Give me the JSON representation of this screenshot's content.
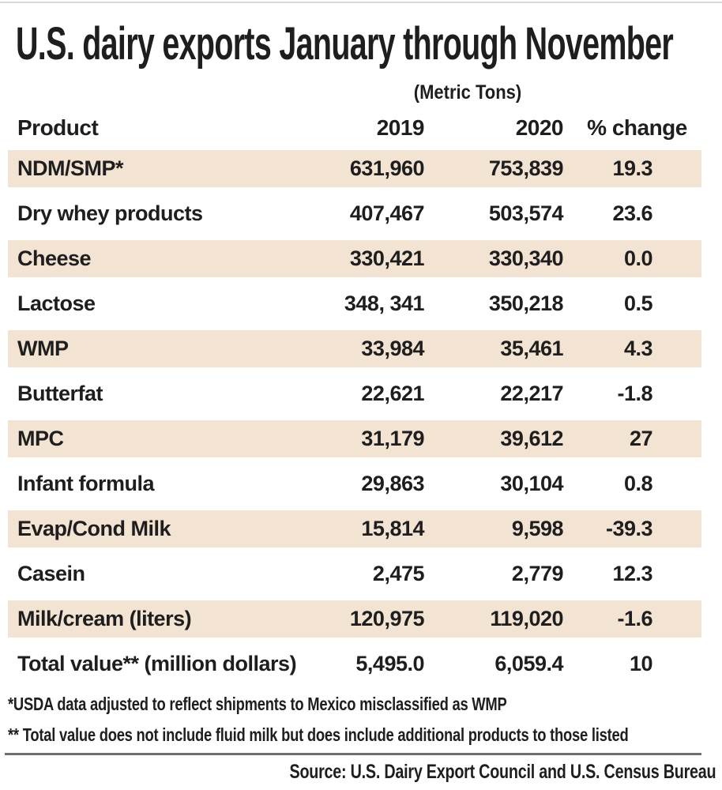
{
  "title": "U.S. dairy exports January through November",
  "unit_label": "(Metric Tons)",
  "table": {
    "header": {
      "product": "Product",
      "y2019": "2019",
      "y2020": "2020",
      "pct": "% change"
    },
    "rows": [
      {
        "product": "NDM/SMP*",
        "y2019": "631,960",
        "y2020": "753,839",
        "pct": "19.3"
      },
      {
        "product": "Dry whey products",
        "y2019": "407,467",
        "y2020": "503,574",
        "pct": "23.6"
      },
      {
        "product": "Cheese",
        "y2019": "330,421",
        "y2020": "330,340",
        "pct": "0.0"
      },
      {
        "product": "Lactose",
        "y2019": "348, 341",
        "y2020": "350,218",
        "pct": "0.5"
      },
      {
        "product": "WMP",
        "y2019": "33,984",
        "y2020": "35,461",
        "pct": "4.3"
      },
      {
        "product": "Butterfat",
        "y2019": "22,621",
        "y2020": "22,217",
        "pct": "-1.8"
      },
      {
        "product": "MPC",
        "y2019": "31,179",
        "y2020": "39,612",
        "pct": "27"
      },
      {
        "product": "Infant formula",
        "y2019": "29,863",
        "y2020": "30,104",
        "pct": "0.8"
      },
      {
        "product": "Evap/Cond Milk",
        "y2019": "15,814",
        "y2020": "9,598",
        "pct": "-39.3"
      },
      {
        "product": "Casein",
        "y2019": "2,475",
        "y2020": "2,779",
        "pct": "12.3"
      },
      {
        "product": "Milk/cream (liters)",
        "y2019": "120,975",
        "y2020": "119,020",
        "pct": "-1.6"
      },
      {
        "product": "Total value** (million dollars)",
        "y2019": "5,495.0",
        "y2020": "6,059.4",
        "pct": "10"
      }
    ]
  },
  "footnotes": {
    "first": "*USDA data adjusted to reflect shipments to Mexico misclassified as WMP",
    "second": "** Total value does not include fluid milk but does include additional products to those listed"
  },
  "source": "Source: U.S. Dairy Export Council and U.S. Census Bureau",
  "colors": {
    "row_shade": "#f3e3d2",
    "text": "#1e1e1e",
    "rule": "#6e6e6e"
  },
  "chart_data": {
    "type": "table",
    "title": "U.S. dairy exports January through November",
    "unit": "Metric Tons",
    "columns": [
      "Product",
      "2019",
      "2020",
      "% change"
    ],
    "rows": [
      [
        "NDM/SMP*",
        631960,
        753839,
        19.3
      ],
      [
        "Dry whey products",
        407467,
        503574,
        23.6
      ],
      [
        "Cheese",
        330421,
        330340,
        0.0
      ],
      [
        "Lactose",
        348341,
        350218,
        0.5
      ],
      [
        "WMP",
        33984,
        35461,
        4.3
      ],
      [
        "Butterfat",
        22621,
        22217,
        -1.8
      ],
      [
        "MPC",
        31179,
        39612,
        27
      ],
      [
        "Infant formula",
        29863,
        30104,
        0.8
      ],
      [
        "Evap/Cond Milk",
        15814,
        9598,
        -39.3
      ],
      [
        "Casein",
        2475,
        2779,
        12.3
      ],
      [
        "Milk/cream (liters)",
        120975,
        119020,
        -1.6
      ],
      [
        "Total value** (million dollars)",
        5495.0,
        6059.4,
        10
      ]
    ],
    "footnotes": [
      "*USDA data adjusted to reflect shipments to Mexico misclassified as WMP",
      "** Total value does not include fluid milk but does include additional products to those listed"
    ],
    "source": "Source: U.S. Dairy Export Council and U.S. Census Bureau"
  }
}
